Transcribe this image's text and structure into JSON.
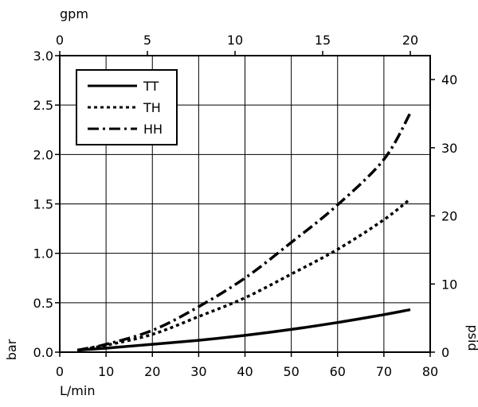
{
  "chart_data": {
    "type": "line",
    "xlabel": "L/min",
    "ylabel": "bar",
    "x2label": "gpm",
    "y2label": "psid",
    "xlim": [
      0,
      80
    ],
    "ylim": [
      0,
      3.0
    ],
    "x2lim": [
      0,
      21.134
    ],
    "y2lim": [
      0,
      43.51
    ],
    "xticks": [
      0,
      10,
      20,
      30,
      40,
      50,
      60,
      70,
      80
    ],
    "yticks": [
      0.0,
      0.5,
      1.0,
      1.5,
      2.0,
      2.5,
      3.0
    ],
    "x2ticks": [
      0,
      5,
      10,
      15,
      20
    ],
    "y2ticks": [
      0,
      10,
      20,
      30,
      40
    ],
    "xtick_labels": [
      "0",
      "10",
      "20",
      "30",
      "40",
      "50",
      "60",
      "70",
      "80"
    ],
    "ytick_labels": [
      "0.0",
      "0.5",
      "1.0",
      "1.5",
      "2.0",
      "2.5",
      "3.0"
    ],
    "x2tick_labels": [
      "0",
      "5",
      "10",
      "15",
      "20"
    ],
    "y2tick_labels": [
      "0",
      "10",
      "20",
      "30",
      "40"
    ],
    "grid": true,
    "legend_position": "top-left",
    "series": [
      {
        "name": "TT",
        "style": "solid",
        "x": [
          3.8,
          10,
          20,
          30,
          40,
          50,
          60,
          70,
          75.7
        ],
        "y": [
          0.02,
          0.04,
          0.08,
          0.12,
          0.17,
          0.23,
          0.3,
          0.38,
          0.43
        ]
      },
      {
        "name": "TH",
        "style": "dotted",
        "x": [
          3.8,
          10,
          20,
          30,
          40,
          50,
          60,
          70,
          75.7
        ],
        "y": [
          0.02,
          0.07,
          0.18,
          0.36,
          0.55,
          0.79,
          1.04,
          1.34,
          1.55
        ]
      },
      {
        "name": "HH",
        "style": "dashdot",
        "x": [
          3.8,
          10,
          20,
          30,
          40,
          50,
          60,
          70,
          75.7
        ],
        "y": [
          0.02,
          0.08,
          0.22,
          0.46,
          0.75,
          1.11,
          1.49,
          1.95,
          2.42
        ]
      }
    ]
  }
}
